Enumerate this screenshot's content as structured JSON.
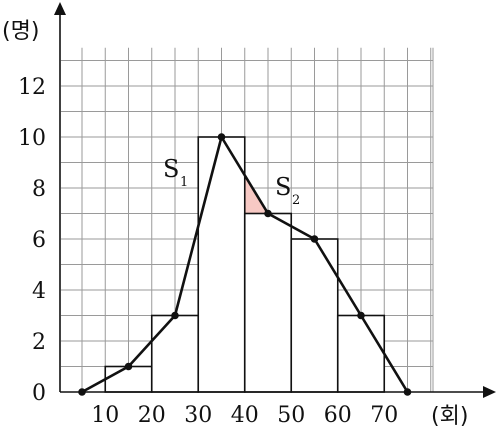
{
  "chart_data": {
    "type": "histogram",
    "ylabel": "(명)",
    "xlabel": "(회)",
    "x_ticks": [
      10,
      20,
      30,
      40,
      50,
      60,
      70
    ],
    "y_ticks": [
      0,
      2,
      4,
      6,
      8,
      10,
      12
    ],
    "ylim": [
      0,
      13.5
    ],
    "bins": [
      {
        "from": 10,
        "to": 20,
        "value": 1
      },
      {
        "from": 20,
        "to": 30,
        "value": 3
      },
      {
        "from": 30,
        "to": 40,
        "value": 10
      },
      {
        "from": 40,
        "to": 50,
        "value": 7
      },
      {
        "from": 50,
        "to": 60,
        "value": 6
      },
      {
        "from": 60,
        "to": 70,
        "value": 3
      }
    ],
    "frequency_polygon": {
      "x": [
        5,
        15,
        25,
        35,
        45,
        55,
        65,
        75
      ],
      "y": [
        0,
        1,
        3,
        10,
        7,
        6,
        3,
        0
      ]
    },
    "annotations": [
      {
        "main": "S",
        "sub": "1"
      },
      {
        "main": "S",
        "sub": "2"
      }
    ],
    "grid": true
  }
}
